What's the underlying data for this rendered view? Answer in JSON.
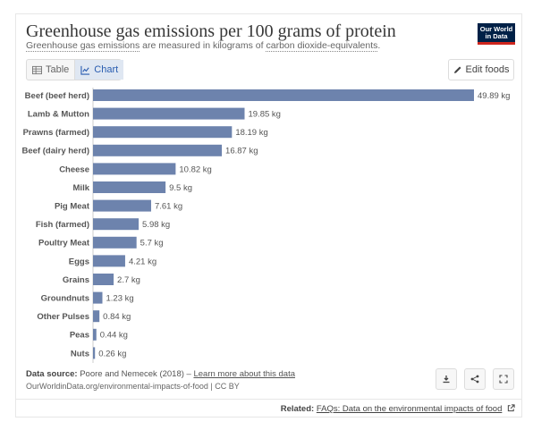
{
  "header": {
    "title": "Greenhouse gas emissions per 100 grams of protein",
    "subtitle_part1": "Greenhouse gas emissions",
    "subtitle_part2": " are measured in kilograms of ",
    "subtitle_part3": "carbon dioxide-equivalents",
    "subtitle_part4": ".",
    "logo_line1": "Our World",
    "logo_line2": "in Data"
  },
  "tabs": {
    "table_label": "Table",
    "chart_label": "Chart"
  },
  "edit_button_label": "Edit foods",
  "colors": {
    "bar": "#6d83ad",
    "logo_bg": "#002147",
    "logo_accent": "#ce261e"
  },
  "chart_data": {
    "type": "bar",
    "orientation": "horizontal",
    "title": "Greenhouse gas emissions per 100 grams of protein",
    "unit": "kg",
    "categories": [
      "Beef (beef herd)",
      "Lamb & Mutton",
      "Prawns (farmed)",
      "Beef (dairy herd)",
      "Cheese",
      "Milk",
      "Pig Meat",
      "Fish (farmed)",
      "Poultry Meat",
      "Eggs",
      "Grains",
      "Groundnuts",
      "Other Pulses",
      "Peas",
      "Nuts"
    ],
    "values": [
      49.89,
      19.85,
      18.19,
      16.87,
      10.82,
      9.5,
      7.61,
      5.98,
      5.7,
      4.21,
      2.7,
      1.23,
      0.84,
      0.44,
      0.26
    ],
    "value_labels": [
      "49.89 kg",
      "19.85 kg",
      "18.19 kg",
      "16.87 kg",
      "10.82 kg",
      "9.5 kg",
      "7.61 kg",
      "5.98 kg",
      "5.7 kg",
      "4.21 kg",
      "2.7 kg",
      "1.23 kg",
      "0.84 kg",
      "0.44 kg",
      "0.26 kg"
    ],
    "xlim": [
      0,
      49.89
    ],
    "grid": false
  },
  "footer": {
    "source_label": "Data source:",
    "source_text": " Poore and Nemecek (2018) – ",
    "source_link": "Learn more about this data",
    "url_text": "OurWorldinData.org/environmental-impacts-of-food | CC BY"
  },
  "related": {
    "label": "Related: ",
    "link": "FAQs: Data on the environmental impacts of food"
  },
  "icons": [
    "table-icon",
    "chart-icon",
    "pencil-icon",
    "download-icon",
    "share-icon",
    "fullscreen-icon",
    "external-link-icon"
  ]
}
